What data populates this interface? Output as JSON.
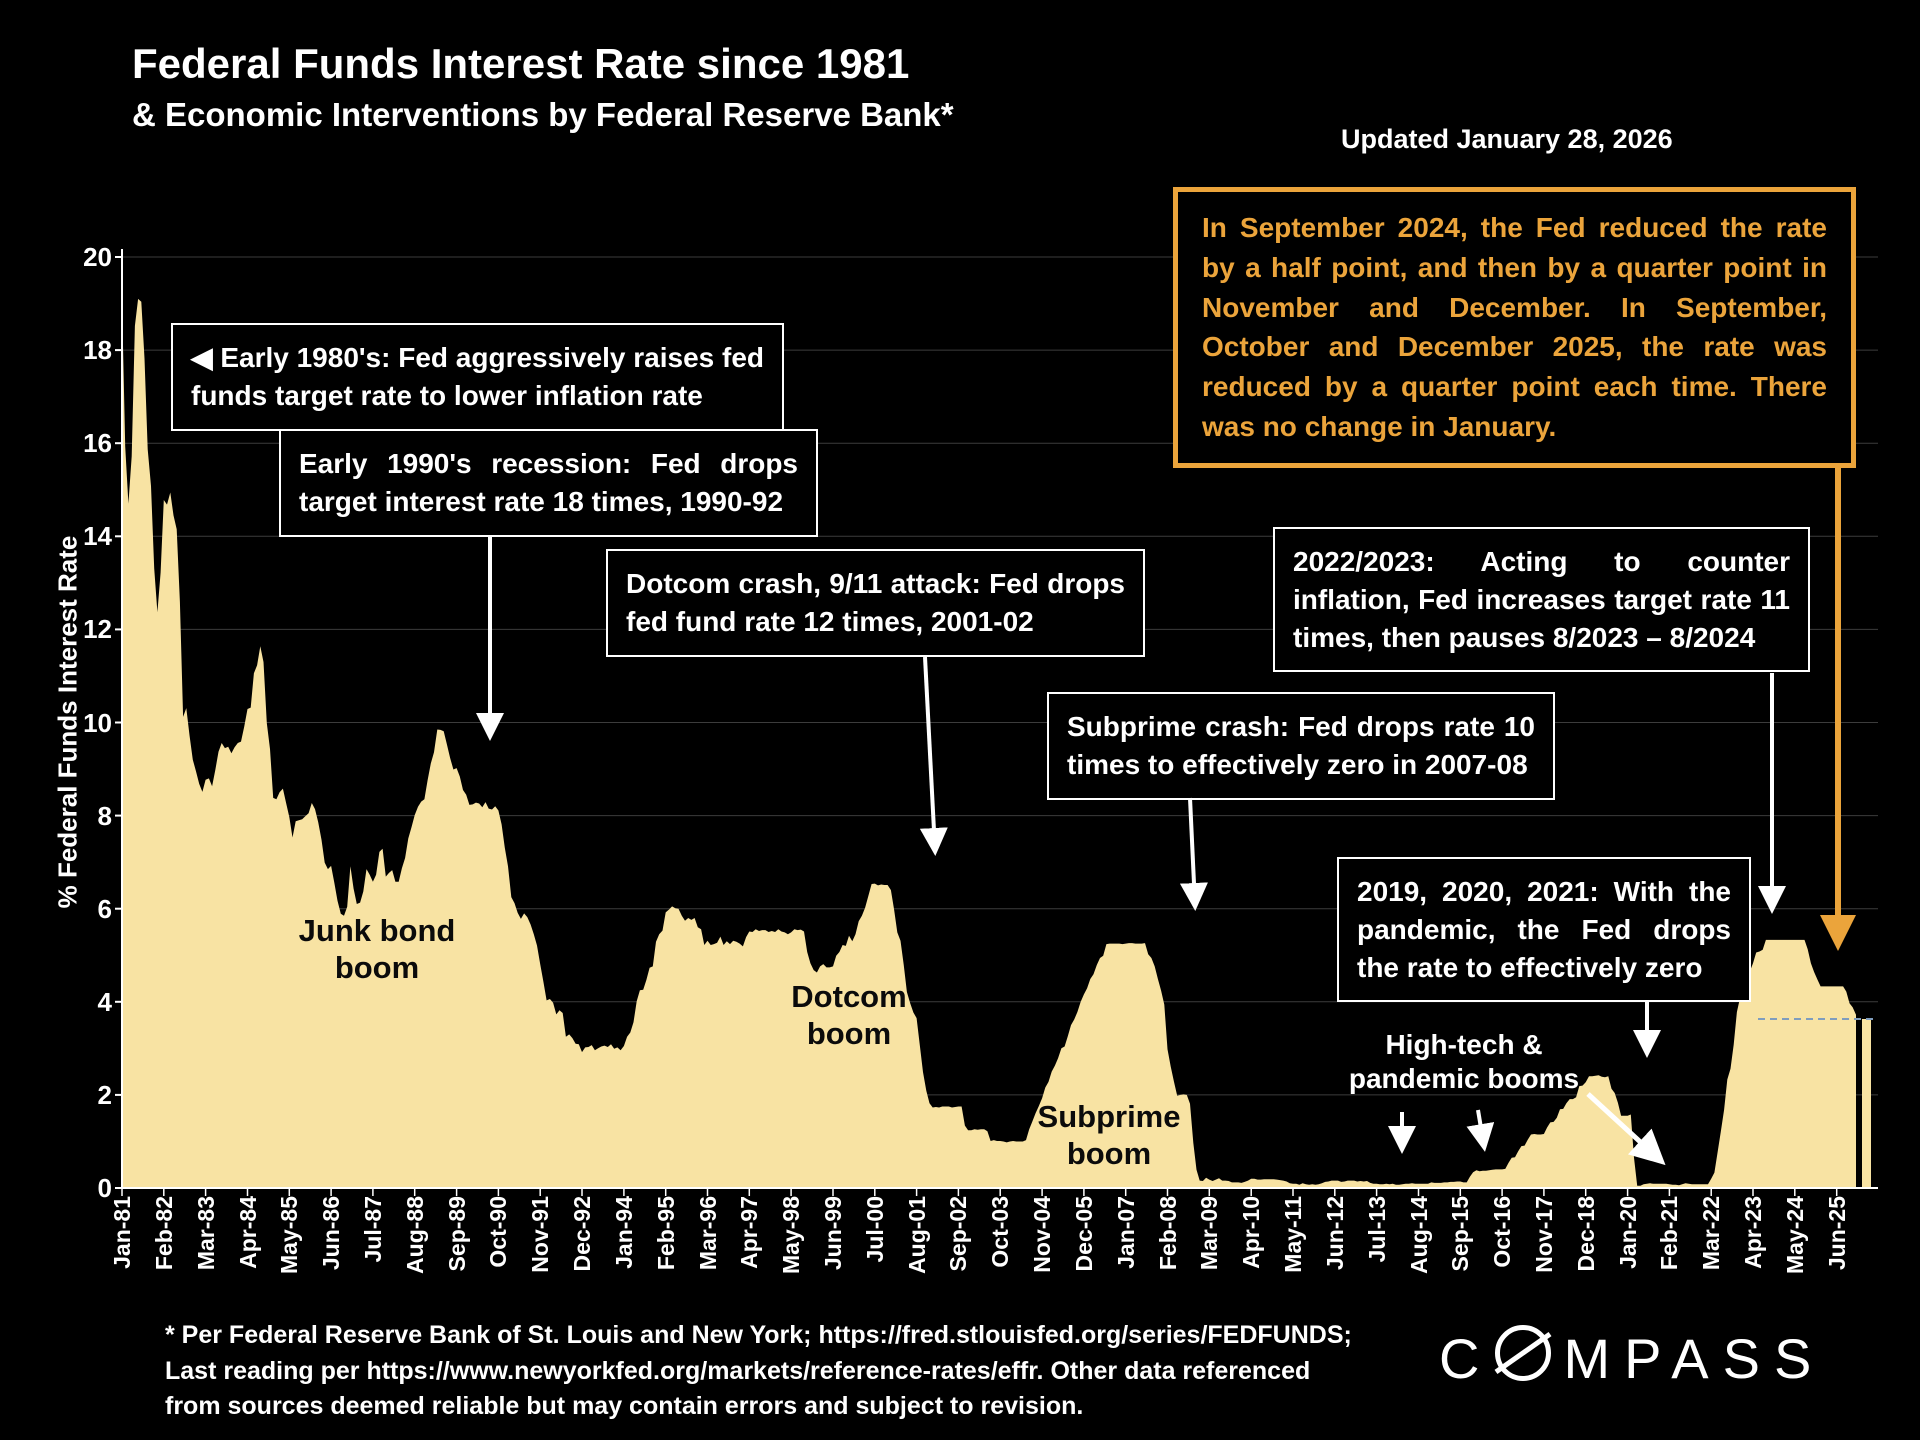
{
  "header": {
    "title": "Federal Funds Interest Rate since 1981",
    "subtitle": "& Economic Interventions by Federal Reserve Bank*",
    "updated": "Updated January 28, 2026"
  },
  "callout": {
    "text": "In September 2024, the Fed reduced the rate by a half point, and then by a quarter point in November and December. In September, October and December 2025, the rate was reduced by a quarter point each time. There was no change in January.",
    "border_color": "#EBA43B",
    "text_color": "#EBA43B"
  },
  "annotations": {
    "box_1980s": {
      "text": "◀ Early 1980's: Fed aggressively raises fed funds target rate to lower inflation rate"
    },
    "box_1990s": {
      "text": "Early 1990's recession: Fed drops target interest rate 18 times, 1990-92"
    },
    "box_dotcom": {
      "text": "Dotcom crash, 9/11 attack: Fed drops fed fund rate 12 times, 2001-02"
    },
    "box_subprime": {
      "text": "Subprime crash: Fed drops rate 10 times to effectively zero in 2007-08"
    },
    "box_2022": {
      "text": "2022/2023: Acting to counter inflation, Fed increases target rate 11 times, then pauses 8/2023 – 8/2024"
    },
    "box_pandemic": {
      "text": "2019, 2020, 2021: With the pandemic, the Fed drops the  rate to effectively zero"
    },
    "label_junk_bond": {
      "text": "Junk bond\nboom"
    },
    "label_dotcom": {
      "text": "Dotcom\nboom"
    },
    "label_subprime": {
      "text": "Subprime\nboom"
    },
    "label_hightech": {
      "text": "High-tech &\npandemic booms"
    }
  },
  "chart_data": {
    "type": "area",
    "title": "Federal Funds Interest Rate since 1981",
    "ylabel": "% Federal Funds Interest Rate",
    "ylim": [
      0,
      20
    ],
    "y_ticks": [
      0,
      2,
      4,
      6,
      8,
      10,
      12,
      14,
      16,
      18,
      20
    ],
    "grid": true,
    "gridline_color": "#3C3C3C",
    "fill_color": "#F8E3A3",
    "x_monthly_start": "Jan-1981",
    "x_monthly_end": "Dec-2025",
    "x_tick_every_months": 13,
    "x_tick_labels": [
      "Jan-81",
      "Feb-82",
      "Mar-83",
      "Apr-84",
      "May-85",
      "Jun-86",
      "Jul-87",
      "Aug-88",
      "Sep-89",
      "Oct-90",
      "Nov-91",
      "Dec-92",
      "Jan-94",
      "Feb-95",
      "Mar-96",
      "Apr-97",
      "May-98",
      "Jun-99",
      "Jul-00",
      "Aug-01",
      "Sep-02",
      "Oct-03",
      "Nov-04",
      "Dec-05",
      "Jan-07",
      "Feb-08",
      "Mar-09",
      "Apr-10",
      "May-11",
      "Jun-12",
      "Jul-13",
      "Aug-14",
      "Sep-15",
      "Oct-16",
      "Nov-17",
      "Dec-18",
      "Jan-20",
      "Feb-21",
      "Mar-22",
      "Apr-23",
      "May-24",
      "Jun-25"
    ],
    "monthly_rates": [
      19.08,
      15.93,
      14.7,
      15.72,
      18.52,
      19.1,
      19.04,
      17.82,
      15.87,
      15.08,
      13.31,
      12.37,
      13.22,
      14.78,
      14.68,
      14.94,
      14.45,
      14.15,
      12.59,
      10.12,
      10.31,
      9.71,
      9.2,
      8.95,
      8.68,
      8.51,
      8.77,
      8.8,
      8.63,
      8.98,
      9.37,
      9.56,
      9.45,
      9.48,
      9.34,
      9.47,
      9.56,
      9.59,
      9.91,
      10.29,
      10.32,
      11.06,
      11.23,
      11.64,
      11.3,
      9.99,
      9.43,
      8.38,
      8.35,
      8.5,
      8.58,
      8.27,
      7.97,
      7.53,
      7.88,
      7.9,
      7.92,
      7.99,
      8.05,
      8.27,
      8.14,
      7.86,
      7.48,
      6.99,
      6.85,
      6.92,
      6.56,
      6.17,
      5.89,
      5.85,
      6.04,
      6.91,
      6.43,
      6.1,
      6.13,
      6.37,
      6.85,
      6.73,
      6.58,
      6.73,
      7.22,
      7.29,
      6.69,
      6.77,
      6.83,
      6.58,
      6.58,
      6.87,
      7.09,
      7.51,
      7.75,
      8.01,
      8.19,
      8.3,
      8.35,
      8.76,
      9.12,
      9.36,
      9.85,
      9.84,
      9.81,
      9.53,
      9.24,
      8.99,
      9.02,
      8.84,
      8.55,
      8.45,
      8.23,
      8.24,
      8.28,
      8.26,
      8.18,
      8.29,
      8.15,
      8.13,
      8.2,
      8.11,
      7.81,
      7.31,
      6.91,
      6.25,
      6.12,
      5.91,
      5.78,
      5.9,
      5.82,
      5.66,
      5.45,
      5.21,
      4.81,
      4.43,
      4.03,
      4.06,
      3.98,
      3.73,
      3.82,
      3.76,
      3.25,
      3.3,
      3.22,
      3.1,
      3.09,
      2.92,
      3.02,
      3.03,
      3.07,
      2.96,
      3.0,
      3.04,
      3.06,
      3.03,
      3.09,
      2.99,
      3.02,
      2.96,
      3.05,
      3.25,
      3.34,
      3.56,
      4.01,
      4.25,
      4.26,
      4.47,
      4.73,
      4.76,
      5.29,
      5.45,
      5.53,
      5.92,
      5.98,
      6.05,
      6.01,
      6.0,
      5.85,
      5.74,
      5.8,
      5.76,
      5.8,
      5.6,
      5.56,
      5.22,
      5.31,
      5.22,
      5.24,
      5.27,
      5.4,
      5.22,
      5.3,
      5.24,
      5.31,
      5.29,
      5.25,
      5.19,
      5.39,
      5.51,
      5.5,
      5.56,
      5.52,
      5.54,
      5.54,
      5.5,
      5.52,
      5.5,
      5.56,
      5.51,
      5.49,
      5.45,
      5.49,
      5.56,
      5.54,
      5.55,
      5.51,
      5.07,
      4.83,
      4.68,
      4.63,
      4.76,
      4.81,
      4.74,
      4.74,
      4.76,
      4.99,
      5.07,
      5.22,
      5.2,
      5.42,
      5.3,
      5.45,
      5.73,
      5.85,
      6.02,
      6.27,
      6.53,
      6.54,
      6.5,
      6.52,
      6.51,
      6.51,
      6.4,
      5.98,
      5.49,
      5.31,
      4.8,
      4.21,
      3.97,
      3.77,
      3.65,
      3.07,
      2.49,
      2.09,
      1.82,
      1.73,
      1.74,
      1.73,
      1.75,
      1.75,
      1.75,
      1.73,
      1.74,
      1.75,
      1.75,
      1.34,
      1.24,
      1.24,
      1.26,
      1.25,
      1.26,
      1.26,
      1.22,
      1.01,
      1.03,
      1.01,
      1.01,
      1.0,
      0.98,
      1.0,
      1.01,
      1.0,
      1.0,
      1.0,
      1.03,
      1.26,
      1.43,
      1.61,
      1.76,
      1.93,
      2.16,
      2.28,
      2.5,
      2.63,
      2.79,
      3.0,
      3.04,
      3.26,
      3.5,
      3.62,
      3.78,
      4.0,
      4.16,
      4.29,
      4.49,
      4.59,
      4.79,
      4.94,
      4.99,
      5.24,
      5.25,
      5.25,
      5.25,
      5.25,
      5.24,
      5.25,
      5.26,
      5.26,
      5.25,
      5.25,
      5.25,
      5.26,
      5.02,
      4.94,
      4.76,
      4.49,
      4.24,
      3.94,
      2.98,
      2.61,
      2.28,
      1.98,
      2.0,
      2.01,
      2.0,
      1.81,
      0.97,
      0.39,
      0.16,
      0.15,
      0.22,
      0.18,
      0.15,
      0.18,
      0.21,
      0.16,
      0.16,
      0.15,
      0.12,
      0.12,
      0.12,
      0.11,
      0.13,
      0.16,
      0.2,
      0.2,
      0.18,
      0.18,
      0.19,
      0.19,
      0.19,
      0.19,
      0.18,
      0.17,
      0.16,
      0.14,
      0.1,
      0.09,
      0.09,
      0.07,
      0.1,
      0.08,
      0.07,
      0.08,
      0.07,
      0.08,
      0.1,
      0.13,
      0.14,
      0.16,
      0.16,
      0.16,
      0.13,
      0.14,
      0.16,
      0.16,
      0.16,
      0.14,
      0.15,
      0.14,
      0.15,
      0.11,
      0.09,
      0.09,
      0.08,
      0.08,
      0.09,
      0.08,
      0.09,
      0.07,
      0.07,
      0.08,
      0.09,
      0.09,
      0.1,
      0.09,
      0.09,
      0.09,
      0.09,
      0.09,
      0.12,
      0.11,
      0.11,
      0.11,
      0.12,
      0.12,
      0.13,
      0.13,
      0.14,
      0.14,
      0.12,
      0.12,
      0.24,
      0.34,
      0.38,
      0.36,
      0.37,
      0.37,
      0.38,
      0.39,
      0.4,
      0.4,
      0.4,
      0.41,
      0.54,
      0.65,
      0.66,
      0.79,
      0.9,
      0.91,
      1.04,
      1.15,
      1.16,
      1.15,
      1.15,
      1.16,
      1.3,
      1.41,
      1.42,
      1.51,
      1.69,
      1.7,
      1.82,
      1.91,
      1.91,
      1.95,
      2.19,
      2.2,
      2.27,
      2.4,
      2.4,
      2.41,
      2.42,
      2.39,
      2.38,
      2.4,
      2.13,
      2.04,
      1.83,
      1.55,
      1.55,
      1.55,
      1.58,
      0.65,
      0.05,
      0.05,
      0.08,
      0.09,
      0.1,
      0.09,
      0.09,
      0.09,
      0.09,
      0.09,
      0.08,
      0.07,
      0.07,
      0.06,
      0.08,
      0.1,
      0.09,
      0.08,
      0.08,
      0.08,
      0.08,
      0.08,
      0.08,
      0.2,
      0.33,
      0.77,
      1.21,
      1.68,
      2.33,
      2.56,
      3.08,
      3.78,
      4.1,
      4.33,
      4.57,
      4.65,
      4.83,
      5.06,
      5.08,
      5.12,
      5.33,
      5.33,
      5.33,
      5.33,
      5.33,
      5.33,
      5.33,
      5.33,
      5.33,
      5.33,
      5.33,
      5.33,
      5.33,
      5.13,
      4.83,
      4.64,
      4.48,
      4.33,
      4.33,
      4.33,
      4.33,
      4.33,
      4.33,
      4.33,
      4.33,
      4.22,
      3.97,
      3.88,
      3.72
    ],
    "last_reading": {
      "label": "Jan-2026",
      "value": 3.63
    },
    "dashed_reference": {
      "value": 3.63,
      "color": "#7F9DBE"
    },
    "legend": "none"
  },
  "footer": {
    "text": "* Per Federal Reserve Bank of St. Louis and New York; https://fred.stlouisfed.org/series/FEDFUNDS;\nLast reading per https://www.newyorkfed.org/markets/reference-rates/effr. Other data referenced\nfrom sources deemed reliable but may contain errors and subject to revision."
  },
  "logo": {
    "brand": "COMPASS",
    "prefix": "C",
    "suffix": "MPASS"
  }
}
